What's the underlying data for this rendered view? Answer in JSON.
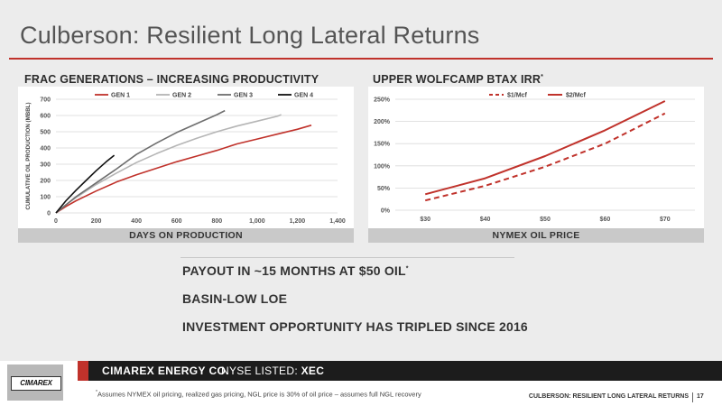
{
  "page": {
    "title": "Culberson: Resilient Long Lateral Returns"
  },
  "left_chart": {
    "heading": "FRAC GENERATIONS – INCREASING PRODUCTIVITY",
    "footer": "DAYS ON PRODUCTION"
  },
  "right_chart": {
    "heading": "UPPER WOLFCAMP BTAX IRR",
    "heading_marker": "*",
    "footer": "NYMEX OIL PRICE"
  },
  "bullets": [
    {
      "text": "PAYOUT IN ~15 MONTHS AT $50 OIL",
      "marker": "*"
    },
    {
      "text": "BASIN-LOW LOE",
      "marker": ""
    },
    {
      "text": "INVESTMENT OPPORTUNITY HAS TRIPLED SINCE 2016",
      "marker": ""
    }
  ],
  "footer": {
    "logo": "CIMAREX",
    "company": "CIMAREX ENERGY CO.",
    "listing_prefix": "NYSE LISTED: ",
    "listing_ticker": "XEC",
    "footnote_marker": "*",
    "footnote": "Assumes NYMEX oil pricing, realized gas pricing, NGL price is 30% of oil price – assumes full NGL recovery",
    "page_title": "CULBERSON: RESILIENT LONG LATERAL RETURNS",
    "page_number": "17"
  },
  "colors": {
    "accent": "#c0322b",
    "gen1": "#c0322b",
    "gen2": "#b5b5b5",
    "gen3": "#6e6e6e",
    "gen4": "#111111",
    "irr": "#c0322b"
  },
  "chart_data": [
    {
      "type": "line",
      "title": "FRAC GENERATIONS – INCREASING PRODUCTIVITY",
      "xlabel": "DAYS ON PRODUCTION",
      "ylabel": "CUMULATIVE OIL PRODUCTION (MBBL)",
      "xlim": [
        0,
        1400
      ],
      "ylim": [
        0,
        700
      ],
      "xticks": [
        0,
        200,
        400,
        600,
        800,
        1000,
        1200,
        1400
      ],
      "xtick_labels": [
        "0",
        "200",
        "400",
        "600",
        "800",
        "1,000",
        "1,200",
        "1,400"
      ],
      "yticks": [
        0,
        100,
        200,
        300,
        400,
        500,
        600,
        700
      ],
      "ytick_labels": [
        "0",
        "100",
        "200",
        "300",
        "400",
        "500",
        "600",
        "700"
      ],
      "grid": true,
      "legend": "top",
      "series": [
        {
          "name": "GEN 1",
          "color": "#c0322b",
          "x": [
            0,
            50,
            100,
            200,
            300,
            400,
            500,
            600,
            700,
            800,
            900,
            1000,
            1100,
            1200,
            1270
          ],
          "y": [
            0,
            40,
            75,
            135,
            190,
            235,
            275,
            315,
            350,
            385,
            425,
            455,
            485,
            515,
            540
          ]
        },
        {
          "name": "GEN 2",
          "color": "#b5b5b5",
          "x": [
            0,
            50,
            100,
            200,
            300,
            400,
            500,
            600,
            700,
            800,
            900,
            1000,
            1100,
            1120
          ],
          "y": [
            0,
            50,
            95,
            175,
            245,
            310,
            365,
            415,
            460,
            500,
            535,
            565,
            595,
            605
          ]
        },
        {
          "name": "GEN 3",
          "color": "#6e6e6e",
          "x": [
            0,
            50,
            100,
            200,
            300,
            400,
            500,
            600,
            700,
            800,
            840
          ],
          "y": [
            0,
            50,
            100,
            185,
            270,
            360,
            430,
            495,
            550,
            605,
            630
          ]
        },
        {
          "name": "GEN 4",
          "color": "#111111",
          "x": [
            0,
            50,
            100,
            150,
            200,
            250,
            290
          ],
          "y": [
            0,
            75,
            140,
            200,
            260,
            315,
            355
          ]
        }
      ]
    },
    {
      "type": "line",
      "title": "UPPER WOLFCAMP BTAX IRR*",
      "xlabel": "NYMEX OIL PRICE",
      "ylabel": "",
      "categories": [
        "$30",
        "$40",
        "$50",
        "$60",
        "$70"
      ],
      "ylim": [
        0,
        250
      ],
      "yticks": [
        0,
        50,
        100,
        150,
        200,
        250
      ],
      "ytick_labels": [
        "0%",
        "50%",
        "100%",
        "150%",
        "200%",
        "250%"
      ],
      "grid": true,
      "legend": "top",
      "series": [
        {
          "name": "$1/Mcf",
          "style": "dashed",
          "color": "#c0322b",
          "values": [
            22,
            55,
            98,
            150,
            218
          ]
        },
        {
          "name": "$2/Mcf",
          "style": "solid",
          "color": "#c0322b",
          "values": [
            36,
            72,
            122,
            180,
            246
          ]
        }
      ]
    }
  ]
}
